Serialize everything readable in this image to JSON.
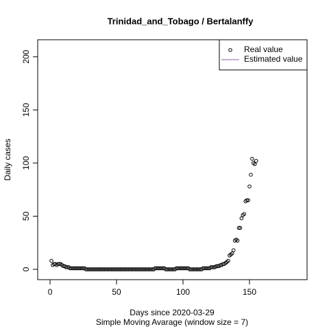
{
  "chart_data": {
    "type": "scatter",
    "title": "Trinidad_and_Tobago / Bertalanffy",
    "x_label": "Days since 2020-03-29",
    "subtitle": "Simple Moving Avarage (window size = 7)",
    "y_label": "Daily cases",
    "xlim": [
      -9.3,
      193.3
    ],
    "ylim": [
      -9.7,
      216
    ],
    "xticks": [
      0,
      50,
      100,
      150
    ],
    "yticks": [
      0,
      50,
      100,
      150,
      200
    ],
    "legend": "top-right",
    "x": [
      1,
      2,
      3,
      4,
      5,
      6,
      7,
      8,
      9,
      10,
      11,
      12,
      13,
      14,
      15,
      16,
      17,
      18,
      19,
      20,
      21,
      22,
      23,
      24,
      25,
      26,
      27,
      28,
      29,
      30,
      31,
      32,
      33,
      34,
      35,
      36,
      37,
      38,
      39,
      40,
      41,
      42,
      43,
      44,
      45,
      46,
      47,
      48,
      49,
      50,
      51,
      52,
      53,
      54,
      55,
      56,
      57,
      58,
      59,
      60,
      61,
      62,
      63,
      64,
      65,
      66,
      67,
      68,
      69,
      70,
      71,
      72,
      73,
      74,
      75,
      76,
      77,
      78,
      79,
      80,
      81,
      82,
      83,
      84,
      85,
      86,
      87,
      88,
      89,
      90,
      91,
      92,
      93,
      94,
      95,
      96,
      97,
      98,
      99,
      100,
      101,
      102,
      103,
      104,
      105,
      106,
      107,
      108,
      109,
      110,
      111,
      112,
      113,
      114,
      115,
      116,
      117,
      118,
      119,
      120,
      121,
      122,
      123,
      124,
      125,
      126,
      127,
      128,
      129,
      130,
      131,
      132,
      133,
      134,
      135,
      136,
      137,
      138,
      139,
      140,
      141,
      142,
      143,
      144,
      145,
      146,
      147,
      148,
      149,
      150,
      151,
      152,
      153,
      154,
      155
    ],
    "series": [
      {
        "name": "Real value",
        "color": "#000000",
        "values": [
          8,
          4,
          5,
          5,
          4,
          5,
          5,
          5,
          4,
          3,
          3,
          2,
          2,
          2,
          1,
          1,
          1,
          1,
          1,
          1,
          1,
          1,
          1,
          1,
          1,
          1,
          0,
          0,
          0,
          0,
          0,
          0,
          0,
          0,
          0,
          0,
          0,
          0,
          0,
          0,
          0,
          0,
          0,
          0,
          0,
          0,
          0,
          0,
          0,
          0,
          0,
          0,
          0,
          0,
          0,
          0,
          0,
          0,
          0,
          0,
          0,
          0,
          0,
          0,
          0,
          0,
          0,
          0,
          0,
          0,
          0,
          0,
          0,
          0,
          0,
          0,
          0,
          0,
          1,
          1,
          1,
          1,
          1,
          1,
          1,
          1,
          0,
          0,
          0,
          0,
          0,
          0,
          0,
          0,
          1,
          1,
          1,
          1,
          1,
          1,
          1,
          1,
          1,
          1,
          0,
          0,
          0,
          0,
          0,
          0,
          0,
          0,
          0,
          0,
          1,
          1,
          1,
          1,
          1,
          1,
          2,
          2,
          2,
          2,
          3,
          3,
          3,
          4,
          4,
          5,
          5,
          6,
          7,
          8,
          13,
          14,
          15,
          18,
          27,
          28,
          27,
          39,
          39,
          48,
          51,
          52,
          64,
          65,
          65,
          78,
          89,
          104,
          100,
          99,
          102
        ]
      },
      {
        "name": "Estimated value",
        "color": "#8b5aa8"
      }
    ]
  }
}
